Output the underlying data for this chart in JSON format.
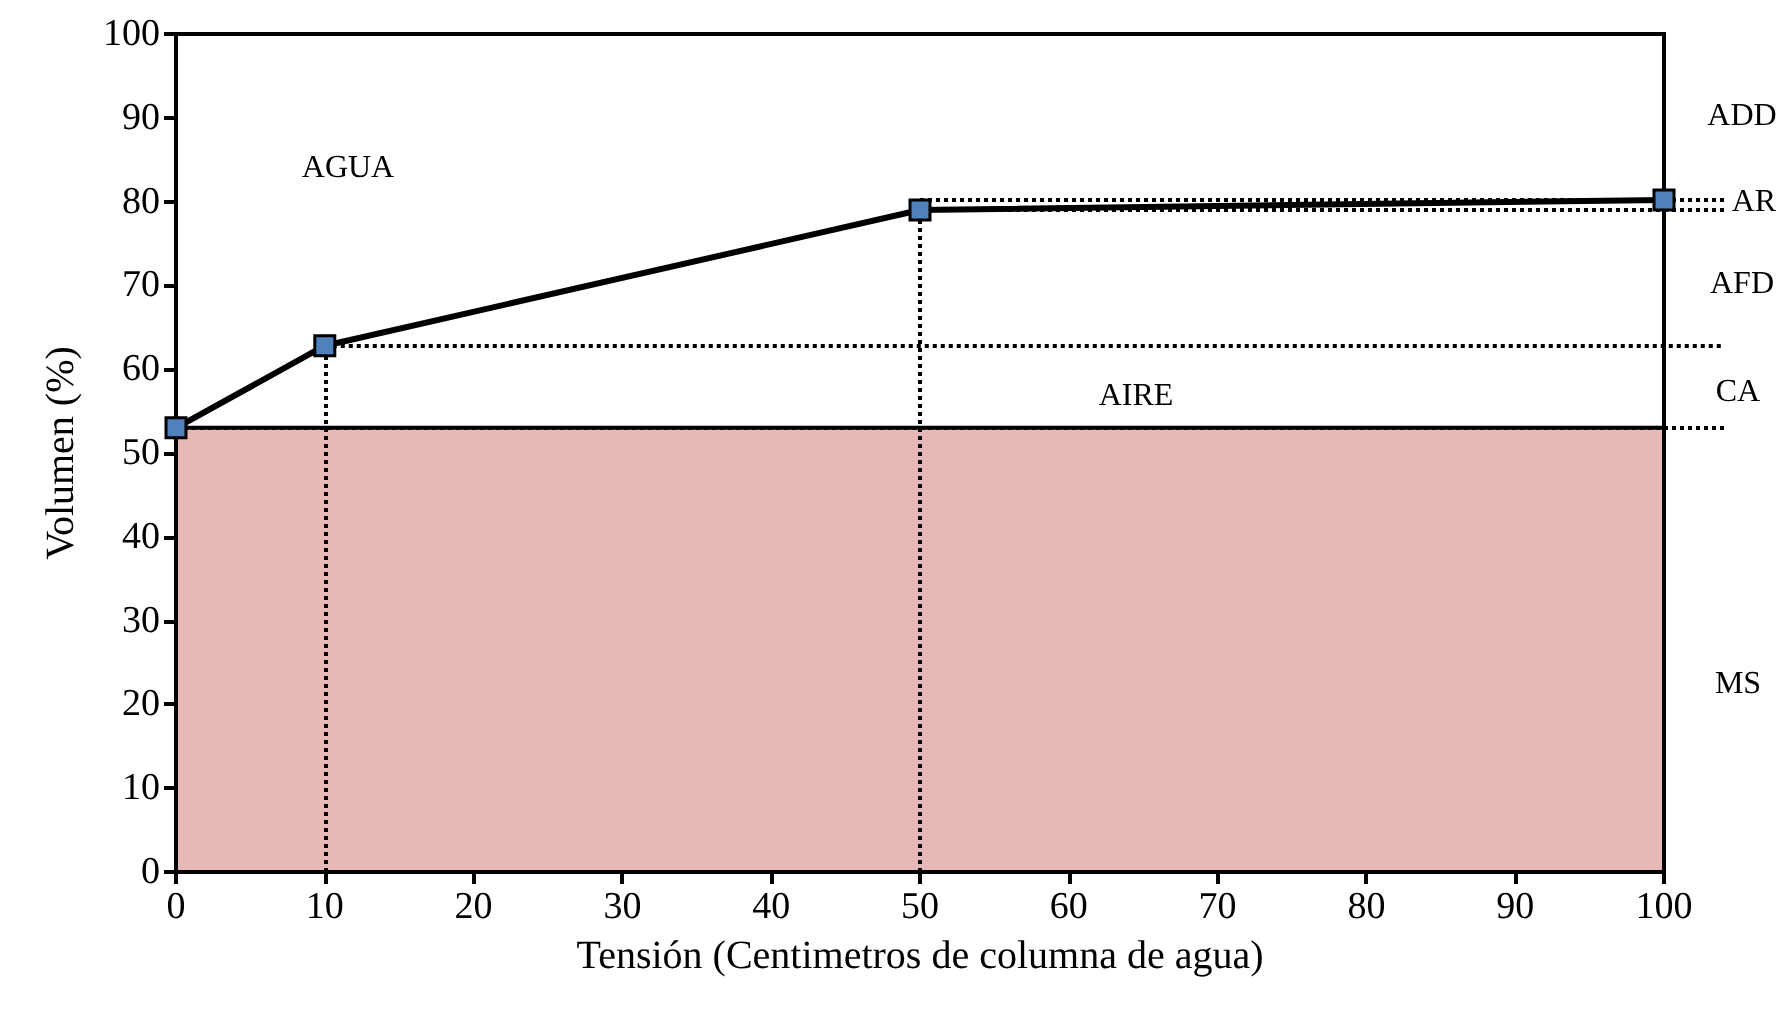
{
  "chart_data": {
    "type": "line",
    "xlabel": "Tensión (Centimetros de columna de agua)",
    "ylabel": "Volumen (%)",
    "x": [
      0,
      10,
      50,
      100
    ],
    "series": [
      {
        "color": "#000000",
        "values": [
          53,
          62.8,
          79,
          80.2
        ]
      }
    ],
    "xlim": [
      0,
      100
    ],
    "xticks": [
      0,
      10,
      20,
      30,
      40,
      50,
      60,
      70,
      80,
      90,
      100
    ],
    "ylim": [
      0,
      100
    ],
    "yticks": [
      0,
      10,
      20,
      30,
      40,
      50,
      60,
      70,
      80,
      90,
      100
    ],
    "grid": false,
    "marker": "square",
    "line_style": "solid",
    "bands": [
      {
        "axis": "y",
        "from": 0,
        "to": 53,
        "color": "#e6b8b7"
      }
    ],
    "ref_lines": [
      {
        "axis": "x",
        "value": 10,
        "line_style": "dotted"
      },
      {
        "axis": "x",
        "value": 50,
        "line_style": "dotted"
      },
      {
        "axis": "y",
        "value": 53,
        "line_style": "dotted"
      },
      {
        "axis": "y",
        "value": 62.8,
        "line_style": "dotted"
      },
      {
        "axis": "y",
        "value": 79,
        "line_style": "dotted"
      },
      {
        "axis": "y",
        "value": 80.2,
        "line_style": "dotted"
      }
    ],
    "annotations": [
      "AGUA",
      "AIRE",
      "ADD",
      "AR",
      "AFD",
      "CA",
      "MS"
    ]
  }
}
